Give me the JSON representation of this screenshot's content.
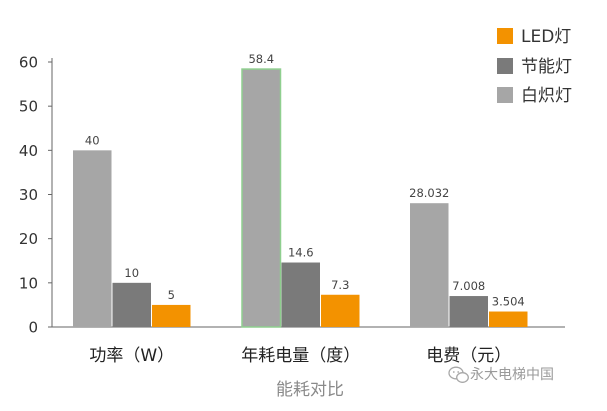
{
  "chart_data": {
    "type": "bar",
    "categories": [
      "功率（W）",
      "年耗电量（度）",
      "电费（元）"
    ],
    "series": [
      {
        "name": "白炽灯",
        "values": [
          40,
          58.4,
          28.032
        ],
        "labels": [
          "40",
          "58.4",
          "28.032"
        ],
        "color": "#a6a6a6"
      },
      {
        "name": "节能灯",
        "values": [
          10,
          14.6,
          7.008
        ],
        "labels": [
          "10",
          "14.6",
          "7.008"
        ],
        "color": "#7a7a7a"
      },
      {
        "name": "LED灯",
        "values": [
          5,
          7.3,
          3.504
        ],
        "labels": [
          "5",
          "7.3",
          "3.504"
        ],
        "color": "#f39200"
      }
    ],
    "legend_order": [
      "LED灯",
      "节能灯",
      "白炽灯"
    ],
    "highlight_color": "#8fcf8f",
    "title": "",
    "xlabel": "能耗对比",
    "ylabel": "",
    "ylim": [
      0,
      60
    ],
    "yticks": [
      0,
      10,
      20,
      30,
      40,
      50,
      60
    ],
    "grid": false,
    "legend_position": "top-right"
  },
  "watermark": {
    "icon": "wechat-icon",
    "text": "永大电梯中国"
  }
}
